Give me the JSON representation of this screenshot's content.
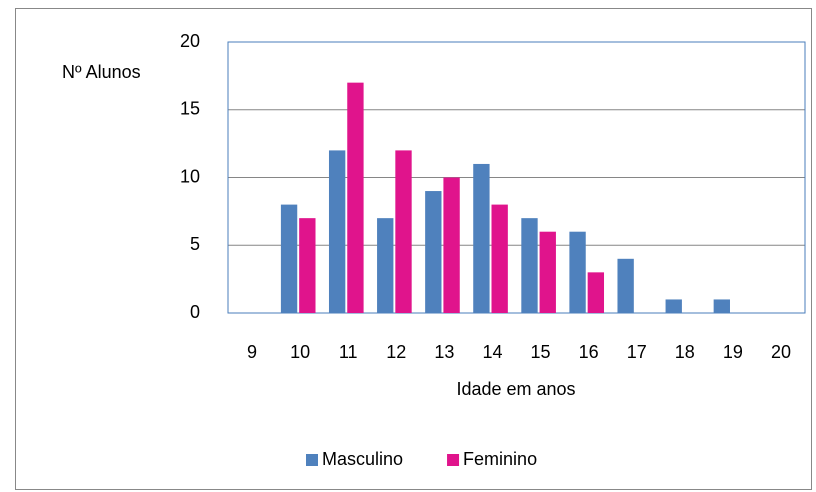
{
  "chart_data": {
    "type": "bar",
    "ylabel": "Nº Alunos",
    "xlabel": "Idade em anos",
    "categories": [
      "9",
      "10",
      "11",
      "12",
      "13",
      "14",
      "15",
      "16",
      "17",
      "18",
      "19",
      "20"
    ],
    "series": [
      {
        "name": "Masculino",
        "color": "#4f81bd",
        "values": [
          0,
          8,
          12,
          7,
          9,
          11,
          7,
          6,
          4,
          1,
          1,
          0
        ]
      },
      {
        "name": "Feminino",
        "color": "#e0148c",
        "values": [
          0,
          7,
          17,
          12,
          10,
          8,
          6,
          3,
          0,
          0,
          0,
          0
        ]
      }
    ],
    "ylim": [
      0,
      20
    ],
    "yticks": [
      0,
      5,
      10,
      15,
      20
    ],
    "grid": true,
    "legend": "bottom"
  }
}
